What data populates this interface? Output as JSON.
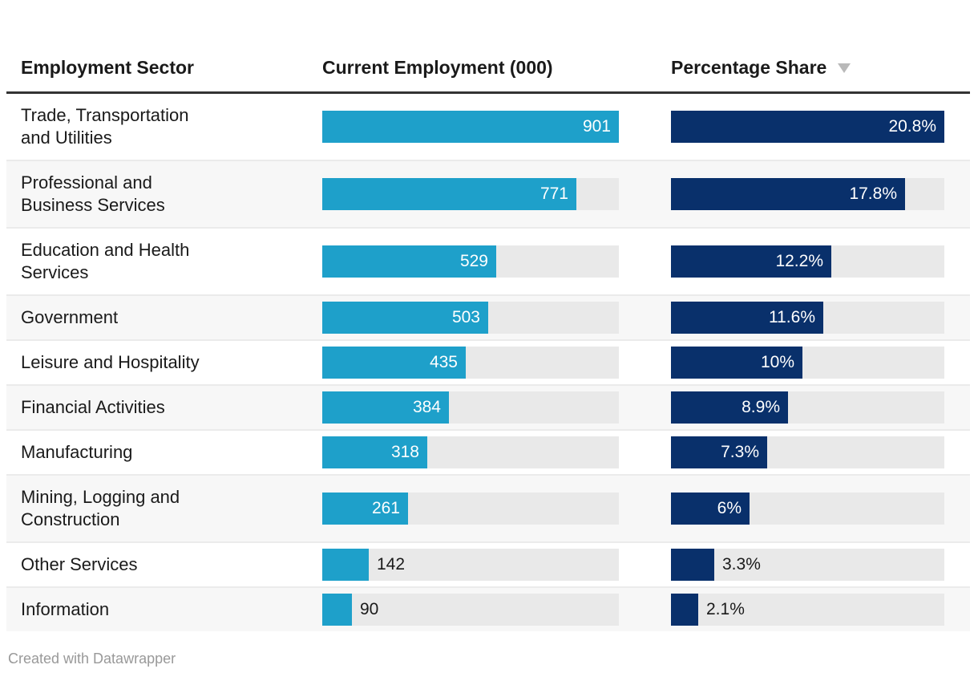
{
  "header": {
    "sector_label": "Employment Sector",
    "employment_label": "Current Employment (000)",
    "share_label": "Percentage Share",
    "sort": {
      "column": "Percentage Share",
      "direction": "descending",
      "icon": "triangle-down"
    }
  },
  "rows": [
    {
      "sector": "Trade, Transportation and Utilities",
      "employment": 901,
      "employment_display": "901",
      "employment_label_inside": true,
      "share": 20.8,
      "share_display": "20.8%",
      "share_label_inside": true
    },
    {
      "sector": "Professional and Business Services",
      "employment": 771,
      "employment_display": "771",
      "employment_label_inside": true,
      "share": 17.8,
      "share_display": "17.8%",
      "share_label_inside": true
    },
    {
      "sector": "Education and Health Services",
      "employment": 529,
      "employment_display": "529",
      "employment_label_inside": true,
      "share": 12.2,
      "share_display": "12.2%",
      "share_label_inside": true
    },
    {
      "sector": "Government",
      "employment": 503,
      "employment_display": "503",
      "employment_label_inside": true,
      "share": 11.6,
      "share_display": "11.6%",
      "share_label_inside": true
    },
    {
      "sector": "Leisure and Hospitality",
      "employment": 435,
      "employment_display": "435",
      "employment_label_inside": true,
      "share": 10,
      "share_display": "10%",
      "share_label_inside": true
    },
    {
      "sector": "Financial Activities",
      "employment": 384,
      "employment_display": "384",
      "employment_label_inside": true,
      "share": 8.9,
      "share_display": "8.9%",
      "share_label_inside": true
    },
    {
      "sector": "Manufacturing",
      "employment": 318,
      "employment_display": "318",
      "employment_label_inside": true,
      "share": 7.3,
      "share_display": "7.3%",
      "share_label_inside": true
    },
    {
      "sector": "Mining, Logging and Construction",
      "employment": 261,
      "employment_display": "261",
      "employment_label_inside": true,
      "share": 6,
      "share_display": "6%",
      "share_label_inside": true
    },
    {
      "sector": "Other Services",
      "employment": 142,
      "employment_display": "142",
      "employment_label_inside": false,
      "share": 3.3,
      "share_display": "3.3%",
      "share_label_inside": false
    },
    {
      "sector": "Information",
      "employment": 90,
      "employment_display": "90",
      "employment_label_inside": false,
      "share": 2.1,
      "share_display": "2.1%",
      "share_label_inside": false
    }
  ],
  "footer": {
    "text": "Created with Datawrapper"
  },
  "colors": {
    "employment_bar": "#1ea0ca",
    "share_bar": "#09306b",
    "bar_track": "#e9e9e9",
    "row_stripe": "#f7f7f7",
    "row_separator": "#ebebeb",
    "header_rule": "#333333",
    "value_text_inside": "#ffffff",
    "value_text_outside": "#1a1a1a",
    "sort_arrow": "#b9b9b9",
    "footer_text": "#999999"
  },
  "chart_data": {
    "type": "table",
    "title": "",
    "columns": [
      "Employment Sector",
      "Current Employment (000)",
      "Percentage Share"
    ],
    "sorted_by": "Percentage Share (descending)",
    "bar_columns": {
      "Current Employment (000)": {
        "max": 901,
        "bar_color": "#1ea0ca"
      },
      "Percentage Share": {
        "max": 20.8,
        "bar_color": "#09306b"
      }
    },
    "rows": [
      [
        "Trade, Transportation and Utilities",
        901,
        "20.8%"
      ],
      [
        "Professional and Business Services",
        771,
        "17.8%"
      ],
      [
        "Education and Health Services",
        529,
        "12.2%"
      ],
      [
        "Government",
        503,
        "11.6%"
      ],
      [
        "Leisure and Hospitality",
        435,
        "10%"
      ],
      [
        "Financial Activities",
        384,
        "8.9%"
      ],
      [
        "Manufacturing",
        318,
        "7.3%"
      ],
      [
        "Mining, Logging and Construction",
        261,
        "6%"
      ],
      [
        "Other Services",
        142,
        "3.3%"
      ],
      [
        "Information",
        90,
        "2.1%"
      ]
    ],
    "attribution": "Created with Datawrapper"
  }
}
